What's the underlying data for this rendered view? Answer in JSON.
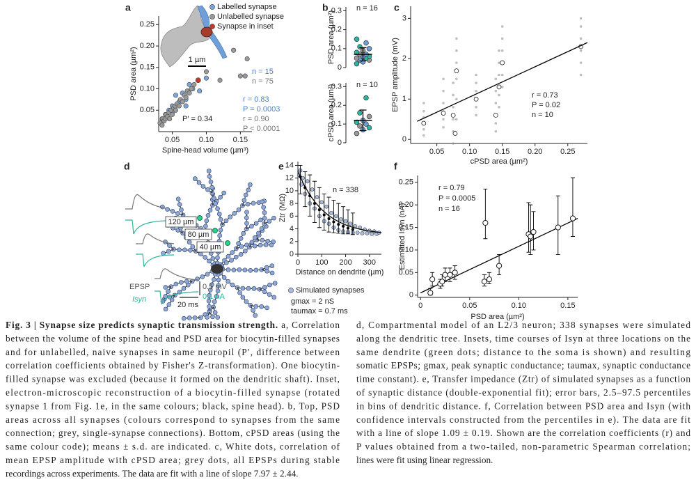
{
  "chart_data": [
    {
      "label": "a",
      "type": "scatter",
      "xlabel": "Spine-head volume (µm³)",
      "ylabel": "PSD area (µm²)",
      "xlim": [
        0.03,
        0.167
      ],
      "ylim": [
        0,
        0.27
      ],
      "xticks": [
        0.05,
        {
          "value": 0.1,
          "label": "0.10"
        },
        0.15
      ],
      "yticks": [
        0.05,
        {
          "value": 0.1,
          "label": "0.10"
        },
        0.15,
        {
          "value": 0.2,
          "label": "0.20"
        },
        0.25
      ],
      "series": [
        {
          "name": "Labelled synapse",
          "color": "#79a6dc",
          "x": [
            0.035,
            0.04,
            0.045,
            0.05,
            0.05,
            0.055,
            0.06,
            0.065,
            0.07,
            0.07,
            0.075,
            0.08,
            0.09,
            0.1
          ],
          "y": [
            0.03,
            0.04,
            0.05,
            0.045,
            0.06,
            0.085,
            0.07,
            0.09,
            0.06,
            0.075,
            0.11,
            0.1,
            0.095,
            0.125
          ]
        },
        {
          "name": "Unlabelled synapse",
          "color": "#9a9a9a",
          "x": [
            0.032,
            0.035,
            0.036,
            0.038,
            0.04,
            0.041,
            0.043,
            0.045,
            0.046,
            0.048,
            0.05,
            0.052,
            0.054,
            0.055,
            0.057,
            0.06,
            0.062,
            0.065,
            0.068,
            0.07,
            0.072,
            0.075,
            0.078,
            0.082,
            0.1,
            0.12,
            0.14,
            0.15,
            0.157,
            0.16
          ],
          "y": [
            0.02,
            0.015,
            0.03,
            0.025,
            0.03,
            0.04,
            0.035,
            0.045,
            0.03,
            0.05,
            0.04,
            0.055,
            0.06,
            0.05,
            0.065,
            0.06,
            0.075,
            0.07,
            0.085,
            0.08,
            0.095,
            0.09,
            0.1,
            0.11,
            0.14,
            0.12,
            0.19,
            0.13,
            0.13,
            0.17
          ]
        },
        {
          "name": "Synapse in inset",
          "color": "#c0392b",
          "x": [
            0.088
          ],
          "y": [
            0.12
          ]
        }
      ],
      "annotations": [
        {
          "text": "n = 15",
          "color": "#4a7fc8"
        },
        {
          "text": "n = 75",
          "color": "#777777"
        },
        {
          "text": "r = 0.83",
          "color": "#4a7fc8"
        },
        {
          "text": "P = 0.0003",
          "color": "#4a7fc8"
        },
        {
          "text": "r = 0.90",
          "color": "#777777"
        },
        {
          "text": "P < 0.0001",
          "color": "#777777"
        },
        {
          "text": "P′ = 0.34",
          "color": "#222222"
        },
        {
          "text": "1 µm",
          "color": "#222222"
        }
      ]
    },
    {
      "label": "b",
      "type": "strip",
      "ylabel": "PSD area (µm²)",
      "ylim": [
        0,
        0.32
      ],
      "yticks": [
        0,
        0.1,
        0.2,
        0.3
      ],
      "values": [
        0.02,
        0.03,
        0.04,
        0.04,
        0.05,
        0.05,
        0.06,
        0.06,
        0.07,
        0.07,
        0.08,
        0.09,
        0.1,
        0.11,
        0.13,
        0.15
      ],
      "colors": [
        "#2bb5a3",
        "#6f9fd8",
        "#9a9a9a",
        "#6f9fd8",
        "#2bb5a3",
        "#9a9a9a",
        "#6f9fd8",
        "#2bb5a3",
        "#9a9a9a",
        "#6f9fd8",
        "#2bb5a3",
        "#9a9a9a",
        "#6f9fd8",
        "#2bb5a3",
        "#6f9fd8",
        "#2bb5a3"
      ],
      "mean": 0.07,
      "sd": 0.035,
      "annotations": [
        {
          "text": "n = 16",
          "color": "#222222"
        }
      ]
    },
    {
      "type": "strip",
      "ylabel": "cPSD area (µm²)",
      "ylim": [
        0,
        0.32
      ],
      "yticks": [
        0,
        0.1,
        0.2,
        0.3
      ],
      "values": [
        0.05,
        0.07,
        0.08,
        0.09,
        0.1,
        0.11,
        0.12,
        0.14,
        0.16,
        0.24
      ],
      "colors": [
        "#9a9a9a",
        "#6f9fd8",
        "#2bb5a3",
        "#9a9a9a",
        "#6f9fd8",
        "#2bb5a3",
        "#6f9fd8",
        "#9a9a9a",
        "#2bb5a3",
        "#2bb5a3"
      ],
      "mean": 0.12,
      "sd": 0.055,
      "annotations": [
        {
          "text": "n = 10",
          "color": "#222222"
        }
      ]
    },
    {
      "label": "c",
      "type": "scatter",
      "xlabel": "cPSD area (µm²)",
      "ylabel": "EPSP amplitude (mV)",
      "xlim": [
        0.01,
        0.28
      ],
      "ylim": [
        -0.1,
        3.3
      ],
      "xticks": [
        0.05,
        {
          "value": 0.1,
          "label": "0.10"
        },
        0.15,
        {
          "value": 0.2,
          "label": "0.20"
        },
        0.25
      ],
      "yticks": [
        0,
        1,
        2,
        3
      ],
      "series": [
        {
          "color": "#8a8a8a",
          "x": [
            0.03,
            0.03,
            0.03,
            0.03,
            0.03,
            0.03,
            0.06,
            0.06,
            0.06,
            0.06,
            0.06,
            0.06,
            0.075,
            0.075,
            0.075,
            0.075,
            0.075,
            0.075,
            0.08,
            0.08,
            0.08,
            0.08,
            0.08,
            0.08,
            0.11,
            0.11,
            0.11,
            0.11,
            0.11,
            0.11,
            0.14,
            0.14,
            0.14,
            0.14,
            0.14,
            0.14,
            0.145,
            0.145,
            0.145,
            0.145,
            0.145,
            0.145,
            0.15,
            0.15,
            0.15,
            0.15,
            0.15,
            0.15,
            0.27,
            0.27,
            0.27,
            0.27,
            0.27,
            0.27
          ],
          "y": [
            0.1,
            0.25,
            0.4,
            0.55,
            0.7,
            0.9,
            0.3,
            0.5,
            0.7,
            0.9,
            1.2,
            1.5,
            -0.1,
            0.2,
            0.5,
            0.8,
            1.1,
            1.4,
            0.5,
            1.0,
            1.5,
            1.9,
            2.2,
            2.5,
            0.6,
            0.8,
            1.0,
            1.2,
            1.4,
            1.6,
            0.2,
            0.4,
            0.6,
            0.9,
            1.2,
            1.5,
            0.8,
            1.1,
            1.3,
            1.6,
            1.9,
            2.2,
            1.3,
            1.6,
            1.9,
            2.2,
            2.5,
            2.8,
            1.6,
            1.9,
            2.2,
            2.5,
            2.8,
            3.0
          ]
        },
        {
          "color": "#ffffff",
          "x": [
            0.03,
            0.06,
            0.075,
            0.078,
            0.08,
            0.11,
            0.14,
            0.145,
            0.15,
            0.27
          ],
          "y": [
            0.4,
            0.65,
            0.6,
            0.15,
            1.7,
            1.0,
            0.6,
            1.3,
            1.9,
            2.3
          ]
        }
      ],
      "fit": {
        "color": "#000000",
        "x": [
          0.02,
          0.28
        ],
        "y": [
          0.45,
          2.4
        ]
      },
      "annotations": [
        {
          "text": "r = 0.73",
          "color": "#222222"
        },
        {
          "text": "P = 0.02",
          "color": "#222222"
        },
        {
          "text": "n = 10",
          "color": "#222222"
        }
      ]
    },
    {
      "label": "e",
      "type": "scatter",
      "xlabel": "Distance on dendrite (µm)",
      "ylabel": "Ztr (MΩ)",
      "xlim": [
        0,
        350
      ],
      "ylim": [
        0,
        14.6
      ],
      "xticks": [
        0,
        100,
        200,
        300
      ],
      "yticks": [
        0,
        2,
        4,
        6,
        8,
        10,
        12,
        14
      ],
      "series": [
        {
          "name": "Simulated synapses",
          "color": "#a9bde3",
          "x": [
            5,
            10,
            15,
            20,
            30,
            40,
            50,
            60,
            70,
            80,
            90,
            100,
            110,
            120,
            130,
            140,
            150,
            160,
            170,
            180,
            190,
            200,
            210,
            220,
            230,
            240,
            250,
            260,
            270,
            280,
            290,
            300,
            310,
            320,
            330,
            340
          ],
          "y": [
            12.5,
            13.2,
            11.0,
            12.0,
            9.5,
            11.5,
            8.0,
            10.2,
            7.2,
            9.0,
            6.0,
            8.2,
            5.2,
            7.5,
            4.8,
            6.5,
            4.2,
            6.0,
            3.8,
            5.5,
            3.6,
            5.2,
            3.5,
            4.8,
            3.4,
            4.4,
            3.4,
            4.2,
            3.3,
            3.9,
            3.3,
            3.7,
            3.2,
            3.6,
            3.2,
            3.4
          ]
        }
      ],
      "errorbars": {
        "marker": "#000000",
        "x": [
          10,
          30,
          50,
          70,
          90,
          110,
          130,
          150,
          170,
          190,
          210,
          230
        ],
        "y": [
          12.2,
          10.5,
          9.2,
          8.0,
          7.0,
          6.2,
          5.6,
          5.1,
          4.7,
          4.4,
          4.1,
          3.9
        ],
        "lower": [
          9.5,
          7.5,
          6.0,
          5.0,
          4.2,
          3.8,
          3.5,
          3.4,
          3.3,
          3.2,
          3.2,
          3.1
        ],
        "upper": [
          14,
          13,
          12.5,
          11.5,
          10.5,
          9.5,
          9,
          8.5,
          8,
          7.5,
          7,
          6.5
        ]
      },
      "fit": {
        "color": "#000000",
        "x": [
          0,
          25,
          50,
          75,
          100,
          125,
          150,
          175,
          200,
          225,
          250,
          275,
          300,
          325,
          350
        ],
        "y": [
          13,
          10.97,
          9.35,
          8.06,
          7.03,
          6.21,
          5.56,
          5.04,
          4.62,
          4.29,
          4.03,
          3.82,
          3.65,
          3.52,
          3.41
        ]
      },
      "annotations": [
        {
          "text": "n = 338",
          "color": "#222222"
        },
        {
          "text": "gmax = 2 nS",
          "color": "#222222"
        },
        {
          "text": "taumax = 0.7 ms",
          "color": "#222222"
        }
      ]
    },
    {
      "label": "f",
      "type": "scatter",
      "xlabel": "PSD area (µm²)",
      "ylabel": "Estimated Isyn (nA)",
      "xlim": [
        -0.003,
        0.16
      ],
      "ylim": [
        -0.005,
        0.265
      ],
      "xticks": [
        0,
        0.05,
        {
          "value": 0.1,
          "label": "0.10"
        },
        0.15
      ],
      "yticks": [
        0,
        0.05,
        {
          "value": 0.1,
          "label": "0.10"
        },
        0.15,
        {
          "value": 0.2,
          "label": "0.20"
        },
        0.25
      ],
      "series": [],
      "errorbars": {
        "marker": "#ffffff",
        "x": [
          0.01,
          0.012,
          0.02,
          0.022,
          0.025,
          0.03,
          0.035,
          0.065,
          0.066,
          0.07,
          0.08,
          0.11,
          0.112,
          0.115,
          0.14,
          0.155
        ],
        "y": [
          0.005,
          0.035,
          0.025,
          0.03,
          0.045,
          0.045,
          0.05,
          0.03,
          0.16,
          0.035,
          0.065,
          0.135,
          0.13,
          0.14,
          0.15,
          0.17
        ],
        "lower": [
          0,
          0.02,
          0.015,
          0.02,
          0.03,
          0.03,
          0.035,
          0.02,
          0.125,
          0.025,
          0.045,
          0.095,
          0.09,
          0.1,
          0.09,
          0.13
        ],
        "upper": [
          0.015,
          0.05,
          0.035,
          0.045,
          0.06,
          0.06,
          0.065,
          0.045,
          0.235,
          0.05,
          0.09,
          0.205,
          0.2,
          0.185,
          0.22,
          0.26
        ]
      },
      "fit": {
        "color": "#000000",
        "x": [
          0,
          0.16
        ],
        "y": [
          0.005,
          0.17
        ]
      },
      "annotations": [
        {
          "text": "r = 0.79",
          "color": "#222222"
        },
        {
          "text": "P = 0.0005",
          "color": "#222222"
        },
        {
          "text": "n = 16",
          "color": "#222222"
        }
      ]
    }
  ],
  "panel_d": {
    "label": "d",
    "labels": [
      "120 µm",
      "80 µm",
      "40 µm",
      "EPSP",
      "Isyn",
      "0.5 mV",
      "0.1 nA",
      "20 ms"
    ]
  },
  "caption": {
    "title": "Fig. 3 | Synapse size predicts synaptic transmission strength.",
    "left_lines": [
      " a, Correlation",
      "between the volume of the spine head and PSD area for biocytin-filled synapses",
      "and for unlabelled, naive synapses in same neuropil (P′, difference between",
      "correlation coefficients obtained by Fisher's Z-transformation). One biocytin-",
      "filled synapse was excluded (because it formed on the dendritic shaft). Inset,",
      "electron-microscopic reconstruction of a biocytin-filled synapse (rotated",
      "synapse 1 from Fig. 1e, in the same colours; black, spine head). b, Top, PSD",
      "areas across all synapses (colours correspond to synapses from the same",
      "connection; grey, single-synapse connections). Bottom, cPSD areas (using the",
      "same colour code); means ± s.d. are indicated. c, White dots, correlation of",
      "mean EPSP amplitude with cPSD area; grey dots, all EPSPs during stable",
      "recordings across experiments. The data are fit with a line of slope 7.97 ± 2.44."
    ],
    "right_lines": [
      "d, Compartmental model of an L2/3 neuron; 338 synapses were simulated",
      "along the dendritic tree. Insets, time courses of Isyn at three locations on the",
      "same dendrite (green dots; distance to the soma is shown) and resulting",
      "somatic EPSPs; gmax, peak synaptic conductance; taumax, synaptic conductance",
      "time constant). e, Transfer impedance (Ztr) of simulated synapses as a function",
      "of synaptic distance (double-exponential fit); error bars, 2.5–97.5 percentiles",
      "in bins of dendritic distance. f, Correlation between PSD area and Isyn (with",
      "confidence intervals constructed from the percentiles in e). The data are fit",
      "with a line of slope 1.09 ± 0.19. Shown are the correlation coefficients (r) and",
      "P values obtained from a two-tailed, non-parametric Spearman correlation;",
      "lines were fit using linear regression."
    ]
  }
}
